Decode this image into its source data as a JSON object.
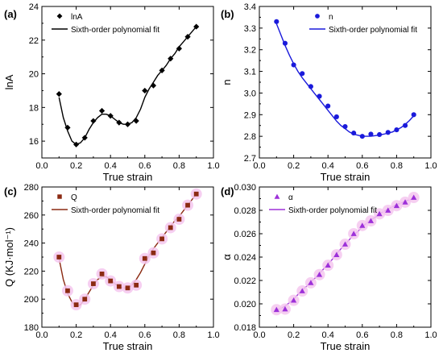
{
  "chart_data": [
    {
      "type": "scatter",
      "panel_label": "(a)",
      "xlabel": "True strain",
      "ylabel": "lnA",
      "xlim": [
        0.0,
        1.0
      ],
      "ylim": [
        15,
        24
      ],
      "xticks": [
        "0.0",
        "0.2",
        "0.4",
        "0.6",
        "0.8",
        "1.0"
      ],
      "yticks": [
        "16",
        "18",
        "20",
        "22",
        "24"
      ],
      "legend_position": "top-left",
      "marker": "diamond",
      "color": "#000000",
      "halo": false,
      "series": [
        {
          "name": "lnA",
          "x": [
            0.1,
            0.15,
            0.2,
            0.25,
            0.3,
            0.35,
            0.4,
            0.45,
            0.5,
            0.55,
            0.6,
            0.65,
            0.7,
            0.75,
            0.8,
            0.85,
            0.9
          ],
          "values": [
            18.8,
            16.8,
            15.8,
            16.2,
            17.2,
            17.8,
            17.5,
            17.1,
            17.0,
            17.2,
            19.0,
            19.3,
            20.2,
            20.9,
            21.5,
            22.2,
            22.8
          ]
        },
        {
          "name": "Sixth-order polynomial fit",
          "kind": "fit",
          "x": [
            0.1,
            0.125,
            0.15,
            0.175,
            0.2,
            0.225,
            0.25,
            0.275,
            0.3,
            0.325,
            0.35,
            0.375,
            0.4,
            0.425,
            0.45,
            0.475,
            0.5,
            0.525,
            0.55,
            0.575,
            0.6,
            0.625,
            0.65,
            0.675,
            0.7,
            0.725,
            0.75,
            0.775,
            0.8,
            0.825,
            0.85,
            0.875,
            0.9
          ],
          "values": [
            18.6,
            17.4,
            16.6,
            16.0,
            15.8,
            15.9,
            16.2,
            16.7,
            17.1,
            17.4,
            17.6,
            17.6,
            17.5,
            17.3,
            17.1,
            17.0,
            17.0,
            17.1,
            17.4,
            17.9,
            18.6,
            19.1,
            19.5,
            19.9,
            20.2,
            20.5,
            20.9,
            21.2,
            21.6,
            21.9,
            22.2,
            22.5,
            22.8
          ]
        }
      ]
    },
    {
      "type": "scatter",
      "panel_label": "(b)",
      "xlabel": "True strain",
      "ylabel": "n",
      "xlim": [
        0.0,
        1.0
      ],
      "ylim": [
        2.7,
        3.4
      ],
      "xticks": [
        "0.0",
        "0.2",
        "0.4",
        "0.6",
        "0.8",
        "1.0"
      ],
      "yticks": [
        "2.7",
        "2.8",
        "2.9",
        "3.0",
        "3.1",
        "3.2",
        "3.3",
        "3.4"
      ],
      "legend_position": "top-right",
      "marker": "circle",
      "color": "#1a1adb",
      "halo": false,
      "series": [
        {
          "name": "n",
          "x": [
            0.1,
            0.15,
            0.2,
            0.25,
            0.3,
            0.35,
            0.4,
            0.45,
            0.5,
            0.55,
            0.6,
            0.65,
            0.7,
            0.75,
            0.8,
            0.85,
            0.9
          ],
          "values": [
            3.33,
            3.23,
            3.13,
            3.09,
            3.03,
            2.985,
            2.94,
            2.89,
            2.845,
            2.815,
            2.8,
            2.81,
            2.808,
            2.818,
            2.83,
            2.85,
            2.9
          ]
        },
        {
          "name": "Sixth-order polynomial fit",
          "kind": "fit",
          "x": [
            0.1,
            0.125,
            0.15,
            0.175,
            0.2,
            0.225,
            0.25,
            0.275,
            0.3,
            0.325,
            0.35,
            0.375,
            0.4,
            0.425,
            0.45,
            0.475,
            0.5,
            0.525,
            0.55,
            0.575,
            0.6,
            0.625,
            0.65,
            0.675,
            0.7,
            0.725,
            0.75,
            0.775,
            0.8,
            0.825,
            0.85,
            0.875,
            0.9
          ],
          "values": [
            3.32,
            3.27,
            3.22,
            3.175,
            3.135,
            3.1,
            3.07,
            3.045,
            3.02,
            2.995,
            2.97,
            2.945,
            2.92,
            2.895,
            2.87,
            2.85,
            2.835,
            2.82,
            2.81,
            2.805,
            2.8,
            2.8,
            2.8,
            2.803,
            2.806,
            2.81,
            2.815,
            2.82,
            2.83,
            2.84,
            2.855,
            2.873,
            2.895
          ]
        }
      ]
    },
    {
      "type": "scatter",
      "panel_label": "(c)",
      "xlabel": "True strain",
      "ylabel": "Q (KJ·mol⁻¹)",
      "xlim": [
        0.0,
        1.0
      ],
      "ylim": [
        180,
        280
      ],
      "xticks": [
        "0.0",
        "0.2",
        "0.4",
        "0.6",
        "0.8",
        "1.0"
      ],
      "yticks": [
        "180",
        "200",
        "220",
        "240",
        "260",
        "280"
      ],
      "legend_position": "top-left",
      "marker": "square",
      "color": "#8b2a12",
      "halo": true,
      "series": [
        {
          "name": "Q",
          "x": [
            0.1,
            0.15,
            0.2,
            0.25,
            0.3,
            0.35,
            0.4,
            0.45,
            0.5,
            0.55,
            0.6,
            0.65,
            0.7,
            0.75,
            0.8,
            0.85,
            0.9
          ],
          "values": [
            230,
            206,
            196,
            200,
            211,
            218,
            213,
            209,
            208,
            210,
            229,
            233,
            243,
            251,
            257,
            267,
            275
          ]
        },
        {
          "name": "Sixth-order polynomial fit",
          "kind": "fit",
          "x": [
            0.1,
            0.125,
            0.15,
            0.175,
            0.2,
            0.225,
            0.25,
            0.275,
            0.3,
            0.325,
            0.35,
            0.375,
            0.4,
            0.425,
            0.45,
            0.475,
            0.5,
            0.525,
            0.55,
            0.575,
            0.6,
            0.625,
            0.65,
            0.675,
            0.7,
            0.725,
            0.75,
            0.775,
            0.8,
            0.825,
            0.85,
            0.875,
            0.9
          ],
          "values": [
            229,
            214,
            204,
            198,
            195,
            196,
            200,
            205,
            210,
            214,
            216,
            216,
            214,
            211,
            209,
            208,
            208,
            210,
            214,
            219,
            225,
            231,
            236,
            240,
            244,
            248,
            252,
            256,
            259,
            263,
            267,
            271,
            275
          ]
        }
      ]
    },
    {
      "type": "scatter",
      "panel_label": "(d)",
      "xlabel": "True strain",
      "ylabel": "α",
      "xlim": [
        0.0,
        1.0
      ],
      "ylim": [
        0.018,
        0.03
      ],
      "xticks": [
        "0.0",
        "0.2",
        "0.4",
        "0.6",
        "0.8",
        "1.0"
      ],
      "yticks": [
        "0.018",
        "0.020",
        "0.022",
        "0.024",
        "0.026",
        "0.028",
        "0.030"
      ],
      "legend_position": "top-left",
      "marker": "triangle",
      "color": "#9d30d9",
      "halo": true,
      "series": [
        {
          "name": "α",
          "x": [
            0.1,
            0.15,
            0.2,
            0.25,
            0.3,
            0.35,
            0.4,
            0.45,
            0.5,
            0.55,
            0.6,
            0.65,
            0.7,
            0.75,
            0.8,
            0.85,
            0.9
          ],
          "values": [
            0.0195,
            0.01955,
            0.0203,
            0.0211,
            0.0218,
            0.0225,
            0.0233,
            0.0242,
            0.0251,
            0.026,
            0.0267,
            0.0271,
            0.0277,
            0.028,
            0.0284,
            0.0287,
            0.0291
          ]
        },
        {
          "name": "Sixth-order polynomial fit",
          "kind": "fit",
          "x": [
            0.1,
            0.125,
            0.15,
            0.175,
            0.2,
            0.225,
            0.25,
            0.275,
            0.3,
            0.325,
            0.35,
            0.375,
            0.4,
            0.425,
            0.45,
            0.475,
            0.5,
            0.525,
            0.55,
            0.575,
            0.6,
            0.625,
            0.65,
            0.675,
            0.7,
            0.725,
            0.75,
            0.775,
            0.8,
            0.825,
            0.85,
            0.875,
            0.9
          ],
          "values": [
            0.0195,
            0.0196,
            0.0198,
            0.0201,
            0.0204,
            0.0208,
            0.0212,
            0.0215,
            0.0219,
            0.0222,
            0.0226,
            0.023,
            0.0234,
            0.0238,
            0.0243,
            0.0247,
            0.0251,
            0.0255,
            0.0259,
            0.0262,
            0.0266,
            0.0269,
            0.0272,
            0.0274,
            0.0277,
            0.0279,
            0.0281,
            0.0283,
            0.0285,
            0.0286,
            0.0288,
            0.0289,
            0.029
          ]
        }
      ]
    }
  ]
}
